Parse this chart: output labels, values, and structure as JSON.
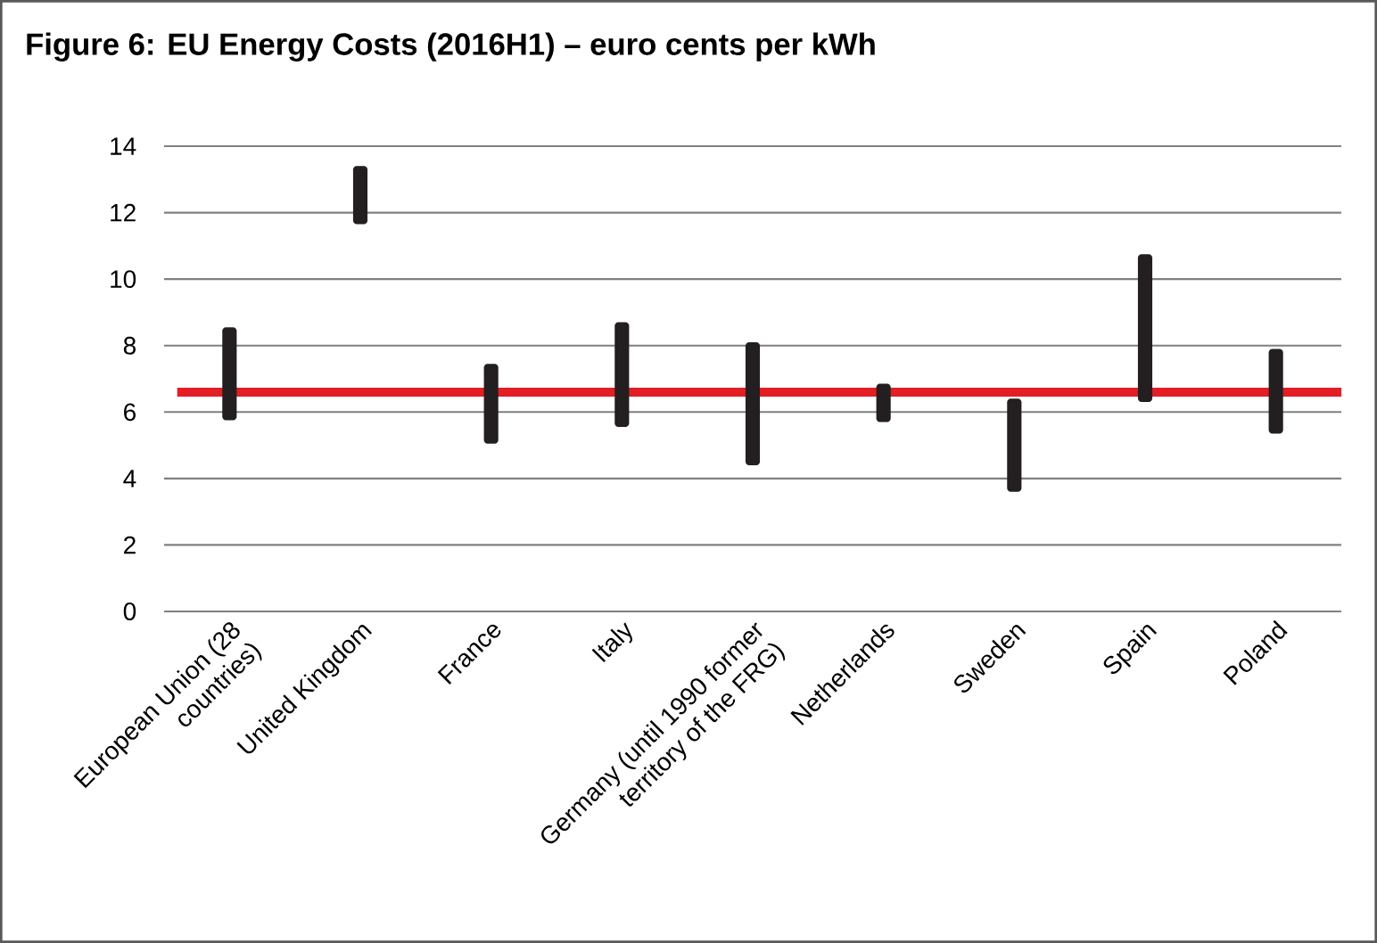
{
  "chart_data": {
    "type": "bar",
    "title": "Figure 6: EU Energy Costs (2016H1) – euro cents per kWh",
    "categories": [
      "European Union (28 countries)",
      "United Kingdom",
      "France",
      "Italy",
      "Germany (until 1990 former territory of the FRG)",
      "Netherlands",
      "Sweden",
      "Spain",
      "Poland"
    ],
    "base": [
      5.75,
      11.65,
      5.05,
      5.55,
      4.4,
      5.7,
      3.6,
      6.3,
      5.35
    ],
    "values": [
      2.8,
      1.75,
      2.4,
      3.15,
      3.7,
      1.15,
      2.8,
      4.45,
      2.55
    ],
    "color": "#231f20",
    "ylim": [
      0,
      14
    ],
    "yticks": [
      0,
      2,
      4,
      6,
      8,
      10,
      12,
      14
    ],
    "grid": "y",
    "ref_lines": [
      {
        "axis": "y",
        "value": 6.6,
        "color": "#e31e24"
      }
    ]
  }
}
